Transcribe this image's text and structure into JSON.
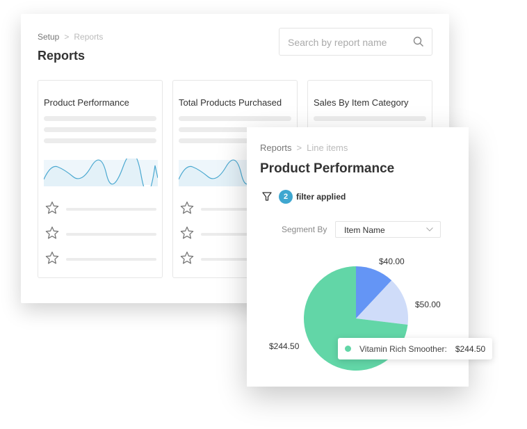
{
  "reports_page": {
    "breadcrumb": {
      "parent": "Setup",
      "current": "Reports"
    },
    "title": "Reports",
    "search": {
      "placeholder": "Search by report name",
      "icon": "search-icon"
    },
    "cards": [
      {
        "title": "Product Performance"
      },
      {
        "title": "Total Products Purchased"
      },
      {
        "title": "Sales By Item Category"
      }
    ]
  },
  "detail_panel": {
    "breadcrumb": {
      "parent": "Reports",
      "current": "Line items"
    },
    "title": "Product Performance",
    "filter": {
      "count": "2",
      "label": "filter applied",
      "icon": "filter-icon"
    },
    "segment": {
      "label": "Segment By",
      "value": "Item Name"
    },
    "colors": {
      "accent": "#3fa7d0",
      "green": "#62d6a7",
      "blue": "#6495f5",
      "light_blue": "#cfdcf9"
    },
    "tooltip": {
      "label": "Vitamin Rich Smoother:",
      "value": "$244.50"
    }
  },
  "chart_data": {
    "type": "pie",
    "slices": [
      {
        "value": 40.0,
        "label": "$40.00",
        "color": "#6495f5"
      },
      {
        "value": 50.0,
        "label": "$50.00",
        "color": "#cfdcf9"
      },
      {
        "value": 244.5,
        "label": "$244.50",
        "color": "#62d6a7"
      }
    ]
  }
}
